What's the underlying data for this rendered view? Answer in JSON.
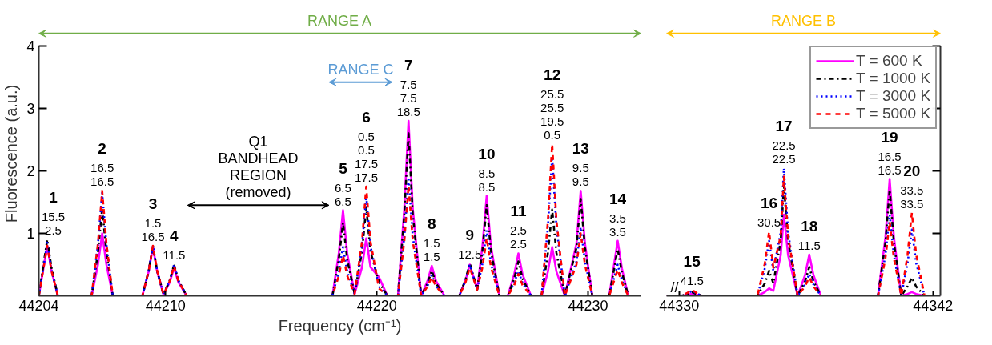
{
  "chart_data": [
    {
      "type": "line",
      "xlabel": "Frequency (cm⁻¹)",
      "ylabel": "Fluorescence (a.u.)",
      "xlim": [
        44204,
        44232.5
      ],
      "xticks": [
        44204,
        44210,
        44220,
        44230
      ],
      "ylim": [
        0,
        4
      ],
      "yticks": [
        1,
        2,
        3,
        4
      ],
      "grid": false,
      "x": [
        44204.0,
        44204.2,
        44204.4,
        44204.6,
        44204.9,
        44206.5,
        44206.8,
        44207.0,
        44207.2,
        44207.5,
        44208.9,
        44209.2,
        44209.4,
        44209.6,
        44209.9,
        44210.2,
        44210.4,
        44210.6,
        44211.0,
        44217.9,
        44218.2,
        44218.4,
        44218.6,
        44218.95,
        44219.3,
        44219.5,
        44219.7,
        44220.1,
        44220.5,
        44221.0,
        44221.3,
        44221.5,
        44221.7,
        44222.1,
        44222.4,
        44222.6,
        44222.8,
        44223.2,
        44223.9,
        44224.2,
        44224.4,
        44224.75,
        44225.0,
        44225.2,
        44225.4,
        44225.8,
        44226.2,
        44226.5,
        44226.7,
        44226.9,
        44227.3,
        44227.8,
        44228.1,
        44228.3,
        44228.5,
        44228.9,
        44229.45,
        44229.65,
        44229.85,
        44230.2,
        44231.0,
        44231.2,
        44231.4,
        44231.6,
        44231.9,
        44232.5
      ],
      "series": [
        {
          "color": "#ff00ff",
          "line_style": "solid",
          "values": [
            0,
            0.4,
            0.8,
            0.4,
            0,
            0,
            0.5,
            1.0,
            0.5,
            0,
            0,
            0.39,
            0.78,
            0.39,
            0.02,
            0.22,
            0.45,
            0.22,
            0,
            0,
            0.68,
            1.37,
            0.68,
            0.03,
            0.46,
            0.92,
            0.46,
            0.3,
            0,
            0,
            1.4,
            2.8,
            1.4,
            0,
            0.24,
            0.48,
            0.24,
            0,
            0,
            0.25,
            0.5,
            0.1,
            0.8,
            1.6,
            0.8,
            0,
            0,
            0.34,
            0.68,
            0.34,
            0,
            0,
            0.39,
            0.78,
            0.39,
            0,
            0.84,
            1.68,
            0.84,
            0,
            0,
            0.44,
            0.88,
            0.44,
            0,
            0
          ]
        },
        {
          "color": "#000000",
          "line_style": "dashdot",
          "values": [
            0,
            0.45,
            0.9,
            0.45,
            0,
            0,
            0.7,
            1.4,
            0.7,
            0,
            0,
            0.4,
            0.8,
            0.4,
            0.02,
            0.25,
            0.5,
            0.25,
            0,
            0,
            0.58,
            1.17,
            0.58,
            0.03,
            0.71,
            1.42,
            0.71,
            0.22,
            0,
            0,
            1.3,
            2.6,
            1.3,
            0,
            0.2,
            0.4,
            0.2,
            0,
            0,
            0.26,
            0.52,
            0.1,
            0.72,
            1.45,
            0.72,
            0,
            0,
            0.27,
            0.55,
            0.27,
            0,
            0,
            0.69,
            1.38,
            0.69,
            0,
            0.77,
            1.55,
            0.77,
            0,
            0,
            0.37,
            0.75,
            0.37,
            0,
            0
          ]
        },
        {
          "color": "#0000ff",
          "line_style": "dotted",
          "values": [
            0,
            0.42,
            0.85,
            0.42,
            0,
            0,
            0.82,
            1.65,
            0.82,
            0,
            0,
            0.4,
            0.8,
            0.4,
            0.02,
            0.25,
            0.5,
            0.25,
            0,
            0,
            0.39,
            0.78,
            0.39,
            0.03,
            0.8,
            1.6,
            0.8,
            0.15,
            0,
            0,
            0.95,
            1.9,
            0.95,
            0,
            0.16,
            0.33,
            0.16,
            0,
            0,
            0.25,
            0.5,
            0.1,
            0.52,
            1.05,
            0.52,
            0,
            0,
            0.2,
            0.4,
            0.2,
            0,
            0,
            1.11,
            2.22,
            1.11,
            0,
            0.55,
            1.1,
            0.55,
            0,
            0,
            0.25,
            0.5,
            0.25,
            0,
            0
          ]
        },
        {
          "color": "#ff0000",
          "line_style": "dashed",
          "values": [
            0,
            0.4,
            0.8,
            0.4,
            0,
            0,
            0.84,
            1.68,
            0.84,
            0,
            0,
            0.4,
            0.8,
            0.4,
            0.02,
            0.24,
            0.48,
            0.24,
            0,
            0,
            0.32,
            0.65,
            0.32,
            0.03,
            0.87,
            1.75,
            0.87,
            0.12,
            0,
            0,
            0.88,
            1.77,
            0.88,
            0,
            0.15,
            0.3,
            0.15,
            0,
            0,
            0.22,
            0.45,
            0.1,
            0.46,
            0.93,
            0.46,
            0,
            0,
            0.17,
            0.35,
            0.17,
            0,
            0,
            1.21,
            2.43,
            1.21,
            0,
            0.5,
            1.0,
            0.5,
            0,
            0,
            0.21,
            0.42,
            0.21,
            0,
            0
          ]
        }
      ],
      "annotations": [
        {
          "text": "1\n15.5\n2.5",
          "x": 44204.4,
          "y": 0.9
        },
        {
          "text": "2\n16.5\n16.5",
          "x": 44207.0,
          "y": 1.68
        },
        {
          "text": "3\n1.5\n16.5",
          "x": 44209.4,
          "y": 0.8
        },
        {
          "text": "4\n11.5",
          "x": 44210.4,
          "y": 0.5
        },
        {
          "text": "5\n6.5\n6.5",
          "x": 44218.4,
          "y": 1.37
        },
        {
          "text": "6\n0.5\n0.5\n17.5\n17.5",
          "x": 44219.5,
          "y": 1.75
        },
        {
          "text": "7\n7.5\n7.5\n18.5",
          "x": 44221.5,
          "y": 2.8
        },
        {
          "text": "8\n1.5\n1.5",
          "x": 44222.6,
          "y": 0.48
        },
        {
          "text": "9\n12.5",
          "x": 44224.4,
          "y": 0.52
        },
        {
          "text": "10\n8.5\n8.5",
          "x": 44225.2,
          "y": 1.6
        },
        {
          "text": "11\n2.5\n2.5",
          "x": 44226.7,
          "y": 0.68
        },
        {
          "text": "12\n25.5\n25.5\n19.5\n0.5",
          "x": 44228.3,
          "y": 2.43
        },
        {
          "text": "13\n9.5\n9.5",
          "x": 44229.65,
          "y": 1.68
        },
        {
          "text": "14\n3.5\n3.5",
          "x": 44231.4,
          "y": 0.88
        },
        "RANGE A",
        "RANGE C",
        "Q1\nBANDHEAD\nREGION\n(removed)"
      ]
    },
    {
      "type": "line",
      "xlim": [
        44329.4,
        44342.35
      ],
      "xticks": [
        44330,
        44342
      ],
      "ylim": [
        0,
        4
      ],
      "yticks": [
        {
          "value": 1,
          "label": null
        },
        {
          "value": 2,
          "label": null
        },
        {
          "value": 3,
          "label": null
        },
        {
          "value": 4,
          "label": null
        }
      ],
      "tick_labels": "x",
      "grid": false,
      "legend": "top right",
      "x": [
        44329.4,
        44330.1,
        44330.4,
        44330.6,
        44330.8,
        44331.1,
        44333.7,
        44334.05,
        44334.25,
        44334.45,
        44334.8,
        44334.95,
        44335.15,
        44335.6,
        44335.95,
        44336.15,
        44336.35,
        44336.7,
        44339.4,
        44339.75,
        44339.95,
        44340.15,
        44340.5,
        44340.8,
        44341.0,
        44341.2,
        44341.6,
        44342.35
      ],
      "series": [
        {
          "name": "T = 600 K",
          "color": "#ff00ff",
          "line_style": "solid",
          "values": [
            0,
            0,
            0.02,
            0.03,
            0.02,
            0,
            0,
            0.06,
            0.12,
            0.08,
            0.65,
            1.3,
            0.65,
            0,
            0.33,
            0.66,
            0.33,
            0,
            0,
            0.94,
            1.87,
            0.94,
            0,
            0.03,
            0.06,
            0.03,
            0,
            0
          ]
        },
        {
          "name": "T = 1000 K",
          "color": "#000000",
          "line_style": "dashdot",
          "values": [
            0,
            0,
            0.03,
            0.06,
            0.03,
            0,
            0,
            0.2,
            0.4,
            0.2,
            0.88,
            1.77,
            0.88,
            0,
            0.23,
            0.46,
            0.23,
            0,
            0,
            0.85,
            1.7,
            0.85,
            0,
            0.15,
            0.29,
            0.15,
            0,
            0
          ]
        },
        {
          "name": "T = 3000 K",
          "color": "#0000ff",
          "line_style": "dotted",
          "values": [
            0,
            0,
            0.04,
            0.08,
            0.04,
            0,
            0,
            0.44,
            0.88,
            0.4,
            1.02,
            2.04,
            1.02,
            0,
            0.18,
            0.35,
            0.18,
            0,
            0,
            0.65,
            1.3,
            0.65,
            0,
            0.53,
            1.06,
            0.53,
            0,
            0
          ]
        },
        {
          "name": "T = 5000 K",
          "color": "#ff0000",
          "line_style": "dashed",
          "values": [
            0,
            0,
            0.05,
            0.1,
            0.05,
            0,
            0,
            0.52,
            1.03,
            0.45,
            0.96,
            1.91,
            0.96,
            0,
            0.15,
            0.3,
            0.15,
            0,
            0,
            0.6,
            1.19,
            0.6,
            0,
            0.67,
            1.33,
            0.67,
            0,
            0
          ]
        }
      ],
      "annotations": [
        {
          "text": "15\n41.5",
          "x": 44330.6,
          "y": 0.1
        },
        {
          "text": "16\n30.5",
          "x": 44334.25,
          "y": 1.03
        },
        {
          "text": "17\n22.5\n22.5",
          "x": 44334.95,
          "y": 2.04
        },
        {
          "text": "18\n11.5",
          "x": 44336.15,
          "y": 0.66
        },
        {
          "text": "19\n16.5\n16.5",
          "x": 44339.95,
          "y": 1.87
        },
        {
          "text": "20\n33.5\n33.5",
          "x": 44341.0,
          "y": 1.33
        },
        "RANGE B",
        "//"
      ]
    }
  ]
}
